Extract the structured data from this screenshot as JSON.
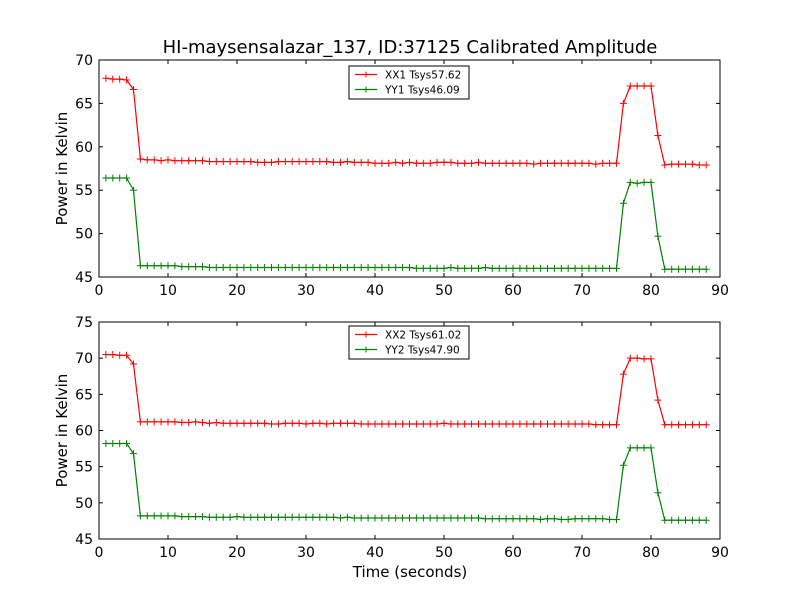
{
  "page": {
    "title": "HI-maysensalazar_137, ID:37125 Calibrated Amplitude",
    "xlabel": "Time (seconds)"
  },
  "colors": {
    "red": "#ff0000",
    "green": "#008000"
  },
  "chart_data": [
    {
      "type": "line",
      "title": "HI-maysensalazar_137, ID:37125 Calibrated Amplitude",
      "xlabel": "",
      "ylabel": "Power in Kelvin",
      "xlim": [
        0,
        90
      ],
      "ylim": [
        45,
        70
      ],
      "xticks": [
        0,
        10,
        20,
        30,
        40,
        50,
        60,
        70,
        80,
        90
      ],
      "yticks": [
        45,
        50,
        55,
        60,
        65,
        70
      ],
      "legend_position": "top-center",
      "series": [
        {
          "name": "XX1 Tsys57.62",
          "color": "#ff0000",
          "x": [
            1,
            2,
            3,
            4,
            5,
            6,
            7,
            8,
            9,
            10,
            11,
            12,
            13,
            14,
            15,
            16,
            17,
            18,
            19,
            20,
            21,
            22,
            23,
            24,
            25,
            26,
            27,
            28,
            29,
            30,
            31,
            32,
            33,
            34,
            35,
            36,
            37,
            38,
            39,
            40,
            41,
            42,
            43,
            44,
            45,
            46,
            47,
            48,
            49,
            50,
            51,
            52,
            53,
            54,
            55,
            56,
            57,
            58,
            59,
            60,
            61,
            62,
            63,
            64,
            65,
            66,
            67,
            68,
            69,
            70,
            71,
            72,
            73,
            74,
            75,
            76,
            77,
            78,
            79,
            80,
            81,
            82,
            83,
            84,
            85,
            86,
            87,
            88
          ],
          "y": [
            67.9,
            67.8,
            67.8,
            67.7,
            66.6,
            58.6,
            58.5,
            58.5,
            58.4,
            58.5,
            58.4,
            58.4,
            58.4,
            58.4,
            58.4,
            58.3,
            58.3,
            58.3,
            58.3,
            58.3,
            58.3,
            58.3,
            58.2,
            58.2,
            58.2,
            58.3,
            58.3,
            58.3,
            58.3,
            58.3,
            58.3,
            58.3,
            58.3,
            58.2,
            58.2,
            58.3,
            58.2,
            58.2,
            58.2,
            58.1,
            58.1,
            58.1,
            58.2,
            58.1,
            58.2,
            58.1,
            58.1,
            58.1,
            58.2,
            58.2,
            58.2,
            58.1,
            58.1,
            58.1,
            58.2,
            58.1,
            58.1,
            58.1,
            58.1,
            58.1,
            58.1,
            58.1,
            58.0,
            58.1,
            58.1,
            58.1,
            58.1,
            58.1,
            58.1,
            58.1,
            58.1,
            58.0,
            58.1,
            58.1,
            58.1,
            65.0,
            67.0,
            67.0,
            67.0,
            67.0,
            61.3,
            57.9,
            58.0,
            58.0,
            58.0,
            58.0,
            57.9,
            57.9
          ]
        },
        {
          "name": "YY1 Tsys46.09",
          "color": "#008000",
          "x": [
            1,
            2,
            3,
            4,
            5,
            6,
            7,
            8,
            9,
            10,
            11,
            12,
            13,
            14,
            15,
            16,
            17,
            18,
            19,
            20,
            21,
            22,
            23,
            24,
            25,
            26,
            27,
            28,
            29,
            30,
            31,
            32,
            33,
            34,
            35,
            36,
            37,
            38,
            39,
            40,
            41,
            42,
            43,
            44,
            45,
            46,
            47,
            48,
            49,
            50,
            51,
            52,
            53,
            54,
            55,
            56,
            57,
            58,
            59,
            60,
            61,
            62,
            63,
            64,
            65,
            66,
            67,
            68,
            69,
            70,
            71,
            72,
            73,
            74,
            75,
            76,
            77,
            78,
            79,
            80,
            81,
            82,
            83,
            84,
            85,
            86,
            87,
            88
          ],
          "y": [
            56.4,
            56.4,
            56.4,
            56.4,
            55.0,
            46.3,
            46.3,
            46.3,
            46.3,
            46.3,
            46.3,
            46.2,
            46.2,
            46.2,
            46.2,
            46.1,
            46.1,
            46.1,
            46.1,
            46.1,
            46.1,
            46.1,
            46.1,
            46.1,
            46.1,
            46.1,
            46.1,
            46.1,
            46.1,
            46.1,
            46.1,
            46.1,
            46.1,
            46.1,
            46.1,
            46.1,
            46.1,
            46.1,
            46.1,
            46.1,
            46.1,
            46.1,
            46.1,
            46.1,
            46.1,
            46.0,
            46.0,
            46.0,
            46.0,
            46.0,
            46.1,
            46.0,
            46.0,
            46.0,
            46.0,
            46.1,
            46.0,
            46.0,
            46.0,
            46.0,
            46.0,
            46.0,
            46.0,
            46.0,
            46.0,
            46.0,
            46.0,
            46.0,
            46.0,
            46.0,
            46.0,
            46.0,
            46.0,
            46.0,
            46.0,
            53.5,
            55.9,
            55.8,
            55.9,
            55.9,
            49.7,
            45.9,
            45.9,
            45.9,
            45.9,
            45.9,
            45.9,
            45.9
          ]
        }
      ]
    },
    {
      "type": "line",
      "title": "",
      "xlabel": "Time (seconds)",
      "ylabel": "Power in Kelvin",
      "xlim": [
        0,
        90
      ],
      "ylim": [
        45,
        75
      ],
      "xticks": [
        0,
        10,
        20,
        30,
        40,
        50,
        60,
        70,
        80,
        90
      ],
      "yticks": [
        45,
        50,
        55,
        60,
        65,
        70,
        75
      ],
      "legend_position": "top-center",
      "series": [
        {
          "name": "XX2 Tsys61.02",
          "color": "#ff0000",
          "x": [
            1,
            2,
            3,
            4,
            5,
            6,
            7,
            8,
            9,
            10,
            11,
            12,
            13,
            14,
            15,
            16,
            17,
            18,
            19,
            20,
            21,
            22,
            23,
            24,
            25,
            26,
            27,
            28,
            29,
            30,
            31,
            32,
            33,
            34,
            35,
            36,
            37,
            38,
            39,
            40,
            41,
            42,
            43,
            44,
            45,
            46,
            47,
            48,
            49,
            50,
            51,
            52,
            53,
            54,
            55,
            56,
            57,
            58,
            59,
            60,
            61,
            62,
            63,
            64,
            65,
            66,
            67,
            68,
            69,
            70,
            71,
            72,
            73,
            74,
            75,
            76,
            77,
            78,
            79,
            80,
            81,
            82,
            83,
            84,
            85,
            86,
            87,
            88
          ],
          "y": [
            70.5,
            70.5,
            70.4,
            70.4,
            69.2,
            61.2,
            61.2,
            61.2,
            61.2,
            61.2,
            61.2,
            61.1,
            61.1,
            61.2,
            61.1,
            61.0,
            61.1,
            61.0,
            61.0,
            61.0,
            61.0,
            61.0,
            61.0,
            61.0,
            60.9,
            60.9,
            61.0,
            61.0,
            61.0,
            60.9,
            61.0,
            61.0,
            60.9,
            61.0,
            61.0,
            61.0,
            61.0,
            60.9,
            60.9,
            60.9,
            60.9,
            60.9,
            60.9,
            60.9,
            60.9,
            60.9,
            60.9,
            60.9,
            60.9,
            61.0,
            60.9,
            60.9,
            60.9,
            60.9,
            60.9,
            60.9,
            60.9,
            60.9,
            60.9,
            60.9,
            60.9,
            60.9,
            60.9,
            60.9,
            60.9,
            60.9,
            60.9,
            60.9,
            60.9,
            60.9,
            60.9,
            60.8,
            60.8,
            60.8,
            60.8,
            67.8,
            70.0,
            70.0,
            69.9,
            69.9,
            64.2,
            60.8,
            60.8,
            60.8,
            60.8,
            60.8,
            60.8,
            60.8
          ]
        },
        {
          "name": "YY2 Tsys47.90",
          "color": "#008000",
          "x": [
            1,
            2,
            3,
            4,
            5,
            6,
            7,
            8,
            9,
            10,
            11,
            12,
            13,
            14,
            15,
            16,
            17,
            18,
            19,
            20,
            21,
            22,
            23,
            24,
            25,
            26,
            27,
            28,
            29,
            30,
            31,
            32,
            33,
            34,
            35,
            36,
            37,
            38,
            39,
            40,
            41,
            42,
            43,
            44,
            45,
            46,
            47,
            48,
            49,
            50,
            51,
            52,
            53,
            54,
            55,
            56,
            57,
            58,
            59,
            60,
            61,
            62,
            63,
            64,
            65,
            66,
            67,
            68,
            69,
            70,
            71,
            72,
            73,
            74,
            75,
            76,
            77,
            78,
            79,
            80,
            81,
            82,
            83,
            84,
            85,
            86,
            87,
            88
          ],
          "y": [
            58.2,
            58.2,
            58.2,
            58.2,
            56.8,
            48.2,
            48.2,
            48.2,
            48.2,
            48.2,
            48.2,
            48.1,
            48.1,
            48.1,
            48.1,
            48.0,
            48.0,
            48.0,
            48.0,
            48.1,
            48.0,
            48.0,
            48.0,
            48.0,
            48.0,
            48.0,
            48.0,
            48.0,
            48.0,
            48.0,
            48.0,
            48.0,
            48.0,
            48.0,
            47.9,
            48.0,
            47.9,
            47.9,
            47.9,
            47.9,
            47.9,
            47.9,
            47.9,
            47.9,
            47.9,
            47.9,
            47.9,
            47.9,
            47.9,
            47.9,
            47.9,
            47.9,
            47.9,
            47.9,
            47.9,
            47.8,
            47.8,
            47.8,
            47.8,
            47.8,
            47.8,
            47.8,
            47.8,
            47.7,
            47.8,
            47.8,
            47.7,
            47.7,
            47.8,
            47.8,
            47.8,
            47.8,
            47.8,
            47.7,
            47.7,
            55.2,
            57.6,
            57.6,
            57.6,
            57.6,
            51.4,
            47.6,
            47.6,
            47.6,
            47.6,
            47.6,
            47.6,
            47.6
          ]
        }
      ]
    }
  ]
}
